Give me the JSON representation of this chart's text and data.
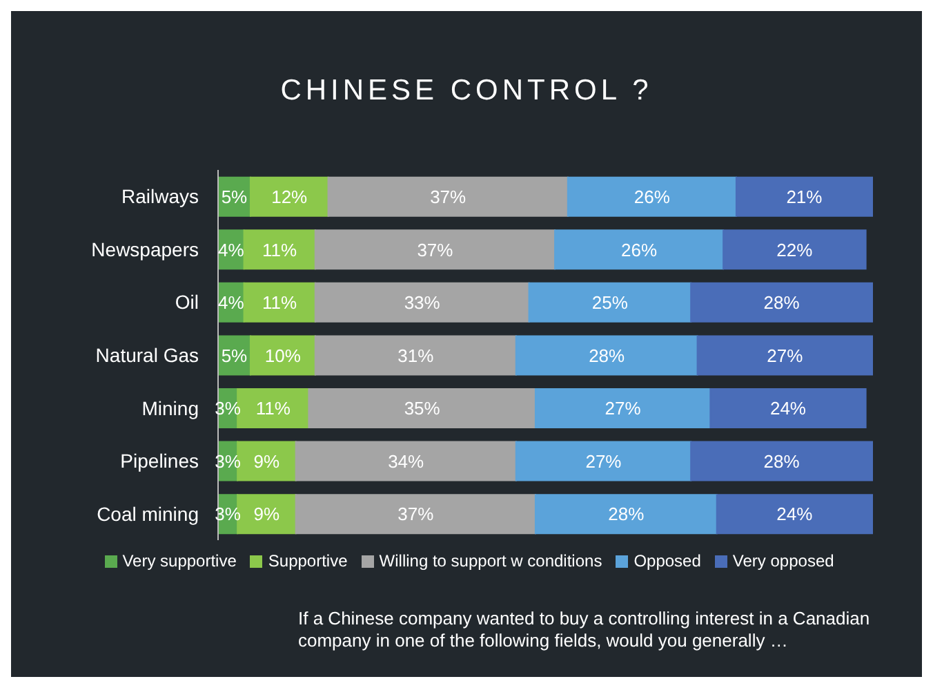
{
  "chart_data": {
    "type": "bar",
    "orientation": "horizontal",
    "stacked": true,
    "title": "CHINESE CONTROL ?",
    "categories": [
      "Railways",
      "Newspapers",
      "Oil",
      "Natural Gas",
      "Mining",
      "Pipelines",
      "Coal mining"
    ],
    "series": [
      {
        "name": "Very supportive",
        "color": "#5aaa4f",
        "values": [
          5,
          4,
          4,
          5,
          3,
          3,
          3
        ],
        "value_labels": [
          "5%",
          "4%",
          "4%",
          "5%",
          "3%",
          "3%",
          "3%"
        ]
      },
      {
        "name": "Supportive",
        "color": "#8cc84b",
        "values": [
          12,
          11,
          11,
          10,
          11,
          9,
          9
        ],
        "value_labels": [
          "12%",
          "11%",
          "11%",
          "10%",
          "11%",
          "9%",
          "9%"
        ]
      },
      {
        "name": "Willing to support w conditions",
        "color": "#a5a5a5",
        "values": [
          37,
          37,
          33,
          31,
          35,
          34,
          37
        ],
        "value_labels": [
          "37%",
          "37%",
          "33%",
          "31%",
          "35%",
          "34%",
          "37%"
        ]
      },
      {
        "name": "Opposed",
        "color": "#5ba3da",
        "values": [
          26,
          26,
          25,
          28,
          27,
          27,
          28
        ],
        "value_labels": [
          "26%",
          "26%",
          "25%",
          "28%",
          "27%",
          "27%",
          "28%"
        ]
      },
      {
        "name": "Very opposed",
        "color": "#4a6db8",
        "values": [
          21,
          22,
          28,
          27,
          24,
          28,
          24
        ],
        "value_labels": [
          "21%",
          "22%",
          "28%",
          "27%",
          "24%",
          "28%",
          "24%"
        ]
      }
    ],
    "legend": "bottom",
    "annotations": [
      "If a Chinese company wanted to buy a controlling interest in a Canadian company in one of the following fields, would you generally …"
    ]
  }
}
